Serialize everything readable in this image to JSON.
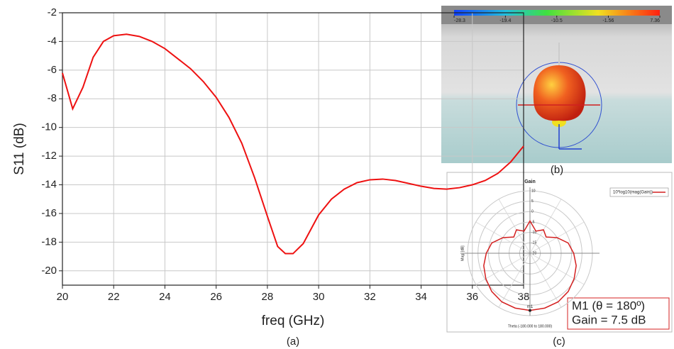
{
  "chart_data": [
    {
      "type": "line",
      "caption": "(a)",
      "x_label": "freq (GHz)",
      "y_label": "S11 (dB)",
      "x": [
        20,
        20.4,
        20.8,
        21.2,
        21.6,
        22,
        22.5,
        23,
        23.5,
        24,
        24.5,
        25,
        25.5,
        26,
        26.5,
        27,
        27.5,
        28,
        28.4,
        28.7,
        29,
        29.4,
        30,
        30.5,
        31,
        31.5,
        32,
        32.5,
        33,
        33.5,
        34,
        34.5,
        35,
        35.5,
        36,
        36.5,
        37,
        37.5,
        38
      ],
      "series": [
        {
          "color": "#ee1111",
          "values": [
            -6.2,
            -8.7,
            -7.2,
            -5.1,
            -4.0,
            -3.6,
            -3.5,
            -3.65,
            -4.0,
            -4.5,
            -5.2,
            -5.9,
            -6.8,
            -7.9,
            -9.3,
            -11.1,
            -13.5,
            -16.2,
            -18.3,
            -18.8,
            -18.8,
            -18.1,
            -16.1,
            -15.0,
            -14.3,
            -13.85,
            -13.65,
            -13.6,
            -13.7,
            -13.9,
            -14.1,
            -14.25,
            -14.3,
            -14.2,
            -14.0,
            -13.7,
            -13.2,
            -12.4,
            -11.3
          ]
        }
      ],
      "xlim": [
        20,
        38
      ],
      "xticks": [
        20,
        22,
        24,
        26,
        28,
        30,
        32,
        34,
        36,
        38
      ],
      "ylim": [
        -21,
        -2
      ],
      "yticks": [
        -2,
        -4,
        -6,
        -8,
        -10,
        -12,
        -14,
        -16,
        -18,
        -20
      ],
      "grid": true
    },
    {
      "type": "colorbar",
      "caption": "(b)",
      "clim": [
        -28.3,
        7.36
      ],
      "ticks": [
        -28.3,
        -19.4,
        -10.5,
        -1.56,
        7.36
      ]
    },
    {
      "type": "polar",
      "caption": "(c)",
      "title": "Gain",
      "r_label": "Mag. [dB]",
      "theta_label": "Theta (-180.000 to 180.000)",
      "theta": [
        -180,
        -165,
        -150,
        -135,
        -120,
        -105,
        -90,
        -75,
        -60,
        -45,
        -30,
        -15,
        0,
        15,
        30,
        45,
        60,
        75,
        90,
        105,
        120,
        135,
        150,
        165,
        180
      ],
      "series": [
        {
          "name": "10*log10(mag(Gain))",
          "color": "#d42020",
          "values": [
            7.5,
            7.3,
            7,
            6,
            4.5,
            3,
            1,
            -1,
            -5,
            -9,
            -7,
            -9,
            -4.5,
            -9,
            -7,
            -9,
            -5,
            -1,
            1,
            3,
            4.5,
            6,
            7,
            7.3,
            7.5
          ]
        }
      ],
      "rlim": [
        -20,
        10
      ],
      "rticks": [
        -20,
        -15,
        -10,
        -5,
        0,
        5,
        10
      ],
      "marker": {
        "label": "m1",
        "theta": 180,
        "r": 7.5
      },
      "annotations": [
        "M1 (θ = 180º)",
        "Gain = 7.5 dB"
      ]
    }
  ]
}
